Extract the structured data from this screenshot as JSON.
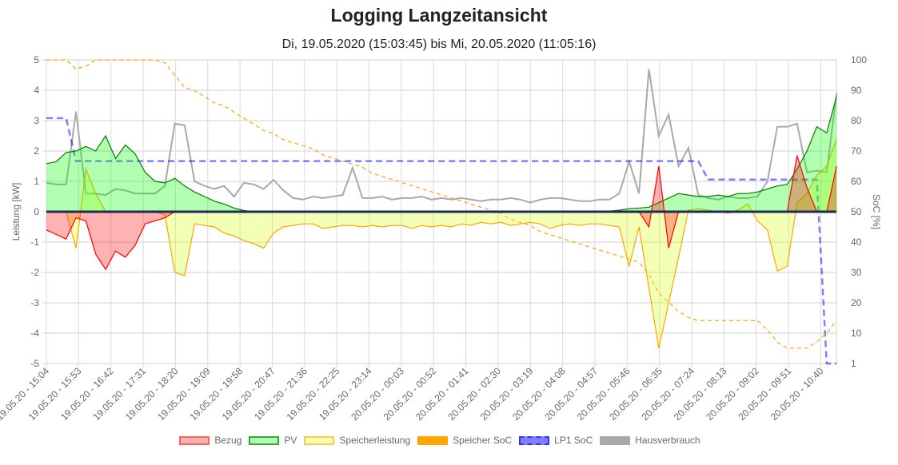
{
  "chart_data": {
    "type": "line",
    "title": "Logging Langzeitansicht",
    "subtitle": "Di, 19.05.2020 (15:03:45) bis Mi, 20.05.2020 (11:05:16)",
    "ylabel": "Leistung [kW]",
    "y2label": "SoC [%]",
    "ylim": [
      -5,
      5
    ],
    "y2lim": [
      1,
      100
    ],
    "yticks": [
      "5",
      "4",
      "3",
      "2",
      "1",
      "0",
      "-1",
      "-2",
      "-3",
      "-4",
      "-5"
    ],
    "y2ticks": [
      "100",
      "90",
      "80",
      "70",
      "60",
      "50",
      "40",
      "30",
      "20",
      "10",
      "1"
    ],
    "grid": true,
    "legend_position": "bottom",
    "xticks": [
      "19.05.20 - 15:04",
      "19.05.20 - 15:53",
      "19.05.20 - 16:42",
      "19.05.20 - 17:31",
      "19.05.20 - 18:20",
      "19.05.20 - 19:09",
      "19.05.20 - 19:58",
      "19.05.20 - 20:47",
      "19.05.20 - 21:36",
      "19.05.20 - 22:25",
      "19.05.20 - 23:14",
      "20.05.20 - 00:03",
      "20.05.20 - 00:52",
      "20.05.20 - 01:41",
      "20.05.20 - 02:30",
      "20.05.20 - 03:19",
      "20.05.20 - 04:08",
      "20.05.20 - 04:57",
      "20.05.20 - 05:46",
      "20.05.20 - 06:35",
      "20.05.20 - 07:24",
      "20.05.20 - 08:13",
      "20.05.20 - 09:02",
      "20.05.20 - 09:51",
      "20.05.20 - 10:40"
    ],
    "x": [
      "19.05.20 - 15:04",
      "19.05.20 - 15:19",
      "19.05.20 - 15:34",
      "19.05.20 - 15:49",
      "19.05.20 - 16:04",
      "19.05.20 - 16:19",
      "19.05.20 - 16:34",
      "19.05.20 - 16:49",
      "19.05.20 - 17:04",
      "19.05.20 - 17:19",
      "19.05.20 - 17:34",
      "19.05.20 - 17:49",
      "19.05.20 - 18:04",
      "19.05.20 - 18:19",
      "19.05.20 - 18:34",
      "19.05.20 - 18:49",
      "19.05.20 - 19:04",
      "19.05.20 - 19:19",
      "19.05.20 - 19:34",
      "19.05.20 - 19:49",
      "19.05.20 - 20:04",
      "19.05.20 - 20:19",
      "19.05.20 - 20:34",
      "19.05.20 - 20:49",
      "19.05.20 - 21:04",
      "19.05.20 - 21:19",
      "19.05.20 - 21:34",
      "19.05.20 - 21:49",
      "19.05.20 - 22:04",
      "19.05.20 - 22:19",
      "19.05.20 - 22:34",
      "19.05.20 - 22:49",
      "19.05.20 - 23:04",
      "19.05.20 - 23:19",
      "19.05.20 - 23:34",
      "19.05.20 - 23:49",
      "20.05.20 - 00:04",
      "20.05.20 - 00:19",
      "20.05.20 - 00:34",
      "20.05.20 - 00:49",
      "20.05.20 - 01:04",
      "20.05.20 - 01:19",
      "20.05.20 - 01:34",
      "20.05.20 - 01:49",
      "20.05.20 - 02:04",
      "20.05.20 - 02:19",
      "20.05.20 - 02:34",
      "20.05.20 - 02:49",
      "20.05.20 - 03:04",
      "20.05.20 - 03:19",
      "20.05.20 - 03:34",
      "20.05.20 - 03:49",
      "20.05.20 - 04:04",
      "20.05.20 - 04:19",
      "20.05.20 - 04:34",
      "20.05.20 - 04:49",
      "20.05.20 - 05:04",
      "20.05.20 - 05:19",
      "20.05.20 - 05:34",
      "20.05.20 - 05:49",
      "20.05.20 - 06:04",
      "20.05.20 - 06:19",
      "20.05.20 - 06:34",
      "20.05.20 - 06:49",
      "20.05.20 - 07:04",
      "20.05.20 - 07:19",
      "20.05.20 - 07:34",
      "20.05.20 - 07:49",
      "20.05.20 - 08:04",
      "20.05.20 - 08:19",
      "20.05.20 - 08:34",
      "20.05.20 - 08:49",
      "20.05.20 - 09:04",
      "20.05.20 - 09:19",
      "20.05.20 - 09:34",
      "20.05.20 - 09:49",
      "20.05.20 - 10:04",
      "20.05.20 - 10:19",
      "20.05.20 - 10:34",
      "20.05.20 - 10:49",
      "20.05.20 - 11:04"
    ],
    "series": [
      {
        "name": "Bezug",
        "axis": "left",
        "fill": true,
        "dashed": false,
        "color": "#ff0000",
        "fill_color": "rgba(255,0,0,0.3)",
        "values": [
          -0.6,
          -0.75,
          -0.9,
          -0.2,
          -0.3,
          -1.4,
          -1.9,
          -1.3,
          -1.5,
          -1.1,
          -0.4,
          -0.3,
          -0.2,
          0,
          0,
          0,
          0,
          0,
          0,
          0,
          0,
          0,
          0,
          0,
          0,
          0,
          0,
          0,
          0,
          0,
          0,
          0,
          0,
          0,
          0,
          0,
          0,
          0,
          0,
          0,
          0,
          0,
          0,
          0,
          0,
          0,
          0,
          0,
          0,
          0,
          0,
          0,
          0,
          0,
          0,
          0,
          0,
          0,
          0,
          0,
          0,
          -0.5,
          1.5,
          -1.2,
          0,
          0,
          0,
          0,
          0,
          0,
          0,
          0,
          0,
          0,
          0,
          0,
          1.85,
          0.8,
          0,
          0,
          1.5
        ]
      },
      {
        "name": "PV",
        "axis": "left",
        "fill": true,
        "dashed": false,
        "color": "#007f00",
        "fill_color": "rgba(0,255,0,0.3)",
        "values": [
          1.58,
          1.65,
          1.95,
          2.0,
          2.15,
          2.0,
          2.5,
          1.75,
          2.2,
          1.9,
          1.3,
          1.0,
          0.95,
          1.1,
          0.85,
          0.65,
          0.5,
          0.35,
          0.25,
          0.12,
          0.04,
          0,
          0,
          0,
          0,
          0,
          0,
          0,
          0,
          0,
          0,
          0,
          0,
          0,
          0,
          0,
          0,
          0,
          0,
          0,
          0,
          0,
          0,
          0,
          0,
          0,
          0,
          0,
          0,
          0,
          0,
          0,
          0,
          0,
          0,
          0,
          0,
          0.02,
          0.05,
          0.1,
          0.12,
          0.15,
          0.3,
          0.45,
          0.6,
          0.55,
          0.5,
          0.5,
          0.55,
          0.5,
          0.6,
          0.6,
          0.65,
          0.75,
          0.85,
          0.9,
          1.4,
          2.0,
          2.8,
          2.6,
          3.8
        ]
      },
      {
        "name": "Speicherleistung",
        "axis": "left",
        "fill": true,
        "dashed": false,
        "color": "#ffa500",
        "fill_color": "rgba(220,255,13,0.3)",
        "values": [
          0,
          0,
          0,
          -1.2,
          1.4,
          0.6,
          0,
          0,
          0,
          0,
          0,
          0,
          -0.1,
          -2.0,
          -2.1,
          -0.4,
          -0.45,
          -0.5,
          -0.7,
          -0.8,
          -0.95,
          -1.05,
          -1.2,
          -0.7,
          -0.5,
          -0.45,
          -0.4,
          -0.4,
          -0.55,
          -0.5,
          -0.45,
          -0.45,
          -0.5,
          -0.45,
          -0.5,
          -0.45,
          -0.45,
          -0.55,
          -0.45,
          -0.5,
          -0.45,
          -0.5,
          -0.4,
          -0.45,
          -0.35,
          -0.4,
          -0.35,
          -0.45,
          -0.4,
          -0.35,
          -0.4,
          -0.55,
          -0.45,
          -0.4,
          -0.45,
          -0.4,
          -0.4,
          -0.45,
          -0.5,
          -1.8,
          -0.5,
          -2.5,
          -4.5,
          -3.0,
          -1.5,
          0.05,
          0.1,
          0.05,
          0,
          -0.05,
          0.05,
          0.25,
          -0.3,
          -0.6,
          -1.95,
          -1.8,
          0.3,
          0.6,
          1.2,
          1.5,
          2.4
        ]
      },
      {
        "name": "Speicher SoC",
        "axis": "right",
        "fill": false,
        "dashed": true,
        "color": "#ffa500",
        "values": [
          100,
          100,
          100,
          97,
          98,
          100,
          100,
          100,
          100,
          100,
          100,
          100,
          99,
          95,
          91,
          90,
          88,
          86,
          85,
          83,
          81,
          79,
          77,
          76,
          74,
          73,
          72,
          71,
          69,
          68,
          67,
          66,
          65,
          63,
          62,
          61,
          60,
          59,
          58,
          57,
          56,
          55,
          54,
          53,
          52,
          51,
          50,
          48,
          47,
          46,
          44,
          43,
          42,
          41,
          40,
          39,
          38,
          37,
          36,
          35,
          34,
          30,
          24,
          21,
          18,
          16,
          15,
          15,
          15,
          15,
          15,
          15,
          15,
          12,
          8,
          6,
          6,
          6,
          8,
          11,
          15
        ]
      },
      {
        "name": "LP1 SoC",
        "axis": "right",
        "fill": false,
        "dashed": true,
        "color": "rgba(0,0,255,0.5)",
        "values": [
          81,
          81,
          81,
          67,
          67,
          67,
          67,
          67,
          67,
          67,
          67,
          67,
          67,
          67,
          67,
          67,
          67,
          67,
          67,
          67,
          67,
          67,
          67,
          67,
          67,
          67,
          67,
          67,
          67,
          67,
          67,
          67,
          67,
          67,
          67,
          67,
          67,
          67,
          67,
          67,
          67,
          67,
          67,
          67,
          67,
          67,
          67,
          67,
          67,
          67,
          67,
          67,
          67,
          67,
          67,
          67,
          67,
          67,
          67,
          67,
          67,
          67,
          67,
          67,
          67,
          67,
          67,
          61,
          61,
          61,
          61,
          61,
          61,
          61,
          61,
          61,
          61,
          61,
          61,
          1,
          1
        ]
      },
      {
        "name": "Hausverbrauch",
        "axis": "left",
        "fill": false,
        "dashed": false,
        "color": "#a9a9a9",
        "values": [
          0.95,
          0.9,
          0.9,
          3.3,
          0.6,
          0.6,
          0.55,
          0.75,
          0.7,
          0.6,
          0.6,
          0.6,
          0.85,
          2.9,
          2.85,
          1.0,
          0.85,
          0.75,
          0.85,
          0.5,
          0.95,
          0.9,
          0.75,
          1.05,
          0.7,
          0.45,
          0.4,
          0.5,
          0.45,
          0.5,
          0.55,
          1.45,
          0.45,
          0.45,
          0.5,
          0.4,
          0.45,
          0.45,
          0.5,
          0.4,
          0.45,
          0.4,
          0.45,
          0.4,
          0.35,
          0.4,
          0.4,
          0.45,
          0.4,
          0.3,
          0.4,
          0.45,
          0.45,
          0.4,
          0.35,
          0.35,
          0.4,
          0.4,
          0.6,
          1.65,
          0.6,
          4.7,
          2.5,
          3.2,
          1.5,
          2.1,
          0.55,
          0.45,
          0.4,
          0.5,
          0.45,
          0.45,
          0.5,
          1.0,
          2.8,
          2.8,
          2.9,
          1.3,
          1.35,
          1.3,
          3.9
        ]
      }
    ]
  },
  "legend": [
    {
      "label": "Bezug",
      "bg": "rgba(255,0,0,0.3)",
      "border": "#ff6060",
      "dashed": false
    },
    {
      "label": "PV",
      "bg": "rgba(0,255,0,0.3)",
      "border": "#3aa43a",
      "dashed": false
    },
    {
      "label": "Speicherleistung",
      "bg": "rgba(220,255,13,0.3)",
      "border": "#ffc850",
      "dashed": false
    },
    {
      "label": "Speicher SoC",
      "bg": "#ffa500",
      "border": "#ffa500",
      "dashed": true
    },
    {
      "label": "LP1 SoC",
      "bg": "rgba(0,0,255,0.5)",
      "border": "#3333ff",
      "dashed": true
    },
    {
      "label": "Hausverbrauch",
      "bg": "#a9a9a9",
      "border": "#a9a9a9",
      "dashed": false
    }
  ]
}
